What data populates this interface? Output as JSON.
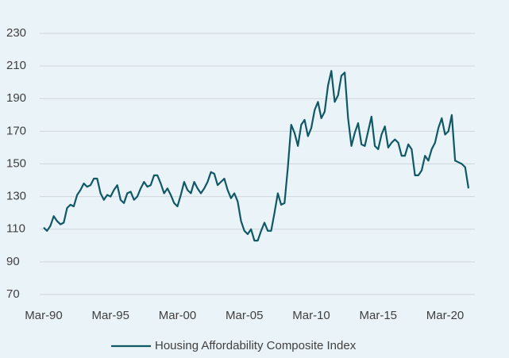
{
  "chart_data": {
    "type": "line",
    "categories": [
      "Mar-90",
      null,
      null,
      null,
      null,
      null,
      null,
      null,
      null,
      null,
      null,
      null,
      null,
      null,
      null,
      null,
      null,
      null,
      null,
      null,
      "Mar-95",
      null,
      null,
      null,
      null,
      null,
      null,
      null,
      null,
      null,
      null,
      null,
      null,
      null,
      null,
      null,
      null,
      null,
      null,
      null,
      "Mar-00",
      null,
      null,
      null,
      null,
      null,
      null,
      null,
      null,
      null,
      null,
      null,
      null,
      null,
      null,
      null,
      null,
      null,
      null,
      null,
      "Mar-05",
      null,
      null,
      null,
      null,
      null,
      null,
      null,
      null,
      null,
      null,
      null,
      null,
      null,
      null,
      null,
      null,
      null,
      null,
      null,
      "Mar-10",
      null,
      null,
      null,
      null,
      null,
      null,
      null,
      null,
      null,
      null,
      null,
      null,
      null,
      null,
      null,
      null,
      null,
      null,
      null,
      "Mar-15",
      null,
      null,
      null,
      null,
      null,
      null,
      null,
      null,
      null,
      null,
      null,
      null,
      null,
      null,
      null,
      null,
      null,
      null,
      null,
      "Mar-20",
      null,
      null,
      null,
      null,
      null,
      null,
      null
    ],
    "series": [
      {
        "name": "Housing Affordability Composite Index",
        "color": "#105866",
        "values": [
          111,
          109,
          112,
          118,
          115,
          113,
          114,
          123,
          125,
          124,
          131,
          134,
          138,
          136,
          137,
          141,
          141,
          132,
          128,
          131,
          130,
          134,
          137,
          128,
          126,
          132,
          133,
          128,
          130,
          135,
          139,
          136,
          137,
          143,
          143,
          138,
          132,
          135,
          131,
          126,
          124,
          131,
          139,
          134,
          132,
          139,
          135,
          132,
          135,
          139,
          145,
          144,
          137,
          139,
          141,
          134,
          129,
          132,
          127,
          115,
          109,
          107,
          110,
          103,
          103,
          109,
          114,
          109,
          109,
          120,
          132,
          125,
          126,
          148,
          174,
          169,
          161,
          174,
          177,
          167,
          172,
          183,
          188,
          178,
          182,
          198,
          207,
          188,
          192,
          204,
          206,
          178,
          161,
          169,
          175,
          162,
          161,
          170,
          179,
          161,
          159,
          168,
          173,
          160,
          163,
          165,
          163,
          155,
          155,
          162,
          159,
          143,
          143,
          146,
          155,
          152,
          159,
          163,
          172,
          178,
          168,
          170,
          180,
          152,
          151,
          150,
          148,
          135
        ]
      }
    ],
    "ylim": [
      70,
      230
    ],
    "yticks": [
      70,
      90,
      110,
      130,
      150,
      170,
      190,
      210,
      230
    ],
    "grid": true,
    "legend": "bottom"
  }
}
